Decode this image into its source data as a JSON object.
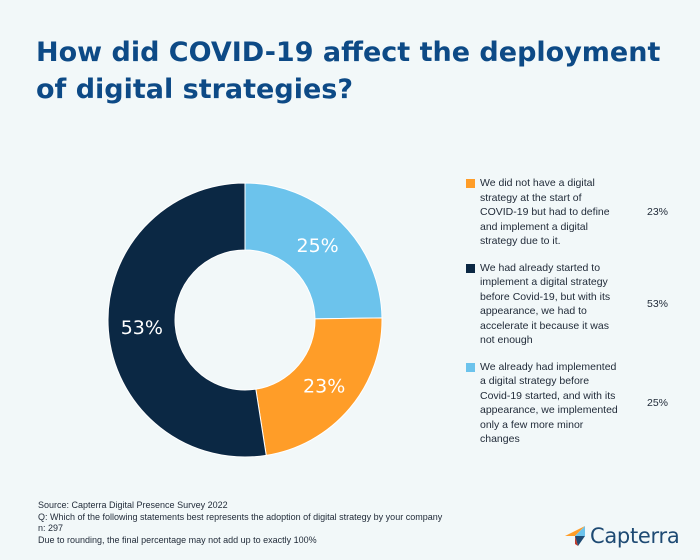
{
  "title": "How did COVID-19 affect the deployment of digital strategies?",
  "chart_data": {
    "type": "pie",
    "title": "How did COVID-19 affect the deployment of digital strategies?",
    "unit": "%",
    "slices": [
      {
        "label": "We already had implemented a digital strategy before Covid-19 started, and with its appearance, we implemented only a few more minor changes",
        "value": 25,
        "display": "25%",
        "color": "#6cc3ec"
      },
      {
        "label": "We did not have a digital strategy at the start of COVID-19 but had to define and implement a digital strategy due to it.",
        "value": 23,
        "display": "23%",
        "color": "#ff9d28"
      },
      {
        "label": "We had already started to implement a digital strategy before Covid-19, but with its appearance, we had to accelerate it because it was not enough",
        "value": 53,
        "display": "53%",
        "color": "#0b2844"
      }
    ],
    "legend": [
      {
        "text": "We did not have a digital strategy at the start of COVID-19 but had to define and implement a digital strategy due to it.",
        "value": "23%",
        "color": "#ff9d28"
      },
      {
        "text": "We had already started to implement a digital strategy before Covid-19, but with its appearance, we had to accelerate it because it was not enough",
        "value": "53%",
        "color": "#0b2844"
      },
      {
        "text": "We already had implemented a digital strategy before Covid-19 started, and with its appearance, we implemented only a few more minor changes",
        "value": "25%",
        "color": "#6cc3ec"
      }
    ],
    "legend_position": "right"
  },
  "notes": {
    "source": "Source: Capterra Digital Presence Survey 2022",
    "question": "Q: Which of the following statements best represents the adoption of digital strategy by your company",
    "n": "n: 297",
    "rounding": "Due to rounding, the final percentage may not add up to exactly 100%"
  },
  "brand": {
    "name": "Capterra",
    "logo_icon": "capterra-arrow-icon",
    "colors": [
      "#ff9d28",
      "#6cc3ec",
      "#1e4a73",
      "#c0392b"
    ]
  }
}
